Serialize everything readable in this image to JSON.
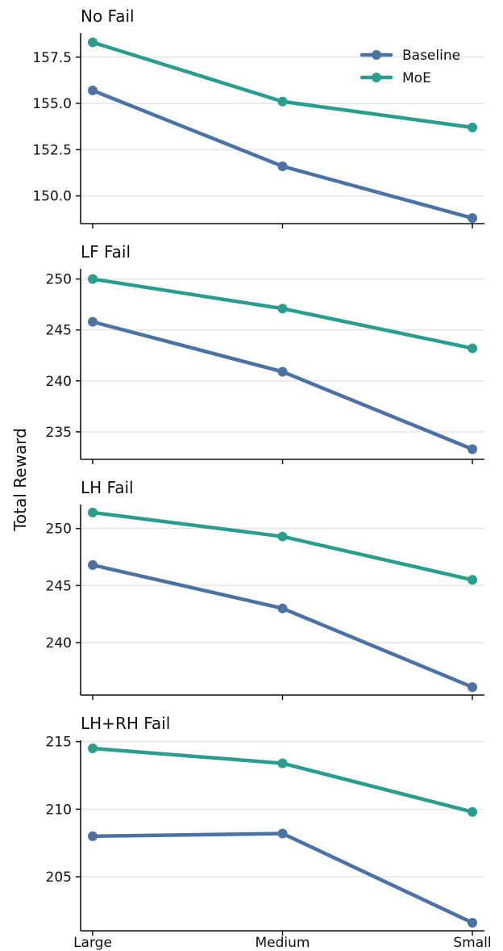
{
  "chart_data": [
    {
      "type": "line",
      "title": "No Fail",
      "categories": [
        "Large",
        "Medium",
        "Small"
      ],
      "ylim": [
        148.5,
        158.8
      ],
      "yticks": [
        150.0,
        152.5,
        155.0,
        157.5
      ],
      "ytick_labels": [
        "150.0",
        "152.5",
        "155.0",
        "157.5"
      ],
      "grid": "horizontal",
      "legend": "top-right",
      "series": [
        {
          "name": "Baseline",
          "values": [
            155.7,
            151.6,
            148.8
          ],
          "color": "#4c72a4"
        },
        {
          "name": "MoE",
          "values": [
            158.3,
            155.1,
            153.7
          ],
          "color": "#2a9d8f"
        }
      ]
    },
    {
      "type": "line",
      "title": "LF Fail",
      "categories": [
        "Large",
        "Medium",
        "Small"
      ],
      "ylim": [
        232.3,
        251.0
      ],
      "yticks": [
        235,
        240,
        245,
        250
      ],
      "ytick_labels": [
        "235",
        "240",
        "245",
        "250"
      ],
      "grid": "horizontal",
      "series": [
        {
          "name": "Baseline",
          "values": [
            245.8,
            240.9,
            233.3
          ],
          "color": "#4c72a4"
        },
        {
          "name": "MoE",
          "values": [
            250.0,
            247.1,
            243.2
          ],
          "color": "#2a9d8f"
        }
      ]
    },
    {
      "type": "line",
      "title": "LH Fail",
      "categories": [
        "Large",
        "Medium",
        "Small"
      ],
      "ylim": [
        235.4,
        252.1
      ],
      "yticks": [
        240,
        245,
        250
      ],
      "ytick_labels": [
        "240",
        "245",
        "250"
      ],
      "grid": "horizontal",
      "series": [
        {
          "name": "Baseline",
          "values": [
            246.8,
            243.0,
            236.1
          ],
          "color": "#4c72a4"
        },
        {
          "name": "MoE",
          "values": [
            251.4,
            249.3,
            245.5
          ],
          "color": "#2a9d8f"
        }
      ]
    },
    {
      "type": "line",
      "title": "LH+RH Fail",
      "categories": [
        "Large",
        "Medium",
        "Small"
      ],
      "ylim": [
        201.0,
        215.1
      ],
      "yticks": [
        205,
        210,
        215
      ],
      "ytick_labels": [
        "205",
        "210",
        "215"
      ],
      "grid": "horizontal",
      "series": [
        {
          "name": "Baseline",
          "values": [
            208.0,
            208.2,
            201.6
          ],
          "color": "#4c72a4"
        },
        {
          "name": "MoE",
          "values": [
            214.5,
            213.4,
            209.8
          ],
          "color": "#2a9d8f"
        }
      ]
    }
  ],
  "shared_ylabel": "Total Reward",
  "axis_color": "#111111",
  "grid_color": "#e6e6e6"
}
